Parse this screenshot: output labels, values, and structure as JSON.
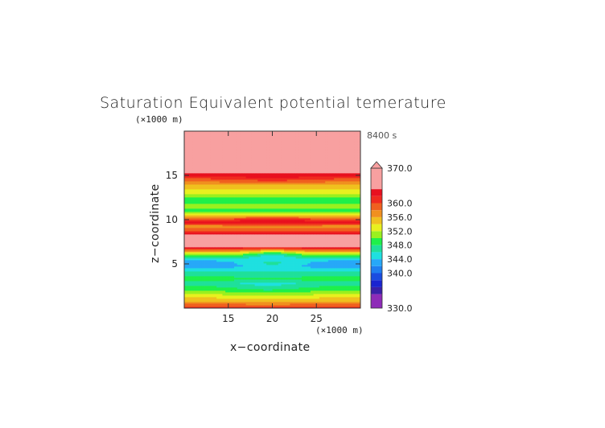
{
  "chart_data": {
    "type": "heatmap",
    "title": "Saturation Equivalent potential temerature",
    "xlabel": "x−coordinate",
    "ylabel": "z−coordinate",
    "x_unit": "(×1000 m)",
    "y_unit": "(×1000 m)",
    "time_label": "8400 s",
    "xlim": [
      10,
      30
    ],
    "ylim": [
      0,
      20
    ],
    "xticks": [
      15,
      20,
      25
    ],
    "yticks": [
      5,
      10,
      15
    ],
    "grid": false,
    "colorbar": {
      "min": 330,
      "max": 370,
      "labels": [
        "370.0",
        "360.0",
        "356.0",
        "352.0",
        "348.0",
        "344.0",
        "340.0",
        "330.0"
      ],
      "label_values": [
        370,
        360,
        356,
        352,
        348,
        344,
        340,
        330
      ],
      "levels": [
        {
          "from": 330,
          "to": 334,
          "color": "#8e2bb8"
        },
        {
          "from": 334,
          "to": 336,
          "color": "#3a20a8"
        },
        {
          "from": 336,
          "to": 338,
          "color": "#1a24d0"
        },
        {
          "from": 338,
          "to": 340,
          "color": "#1a4ce0"
        },
        {
          "from": 340,
          "to": 342,
          "color": "#1f7ef0"
        },
        {
          "from": 342,
          "to": 344,
          "color": "#27a8f8"
        },
        {
          "from": 344,
          "to": 346,
          "color": "#1fe0e0"
        },
        {
          "from": 346,
          "to": 348,
          "color": "#1fe09a"
        },
        {
          "from": 348,
          "to": 350,
          "color": "#1ff04a"
        },
        {
          "from": 350,
          "to": 352,
          "color": "#9af01f"
        },
        {
          "from": 352,
          "to": 354,
          "color": "#e8f01f"
        },
        {
          "from": 354,
          "to": 356,
          "color": "#f0c01f"
        },
        {
          "from": 356,
          "to": 358,
          "color": "#f0901f"
        },
        {
          "from": 358,
          "to": 360,
          "color": "#f0601f"
        },
        {
          "from": 360,
          "to": 362,
          "color": "#f02a1f"
        },
        {
          "from": 362,
          "to": 364,
          "color": "#e8101f"
        },
        {
          "from": 364,
          "to": 370,
          "color": "#f8a0a0"
        }
      ]
    },
    "z_profile": [
      {
        "z": 0.0,
        "v": 361
      },
      {
        "z": 0.3,
        "v": 359
      },
      {
        "z": 0.7,
        "v": 356.5
      },
      {
        "z": 1.1,
        "v": 354.5
      },
      {
        "z": 1.5,
        "v": 352.5
      },
      {
        "z": 1.9,
        "v": 350.5
      },
      {
        "z": 2.3,
        "v": 349
      },
      {
        "z": 2.8,
        "v": 347
      },
      {
        "z": 3.3,
        "v": 349
      },
      {
        "z": 3.8,
        "v": 347.5
      },
      {
        "z": 4.3,
        "v": 345
      },
      {
        "z": 4.8,
        "v": 343
      },
      {
        "z": 5.3,
        "v": 343.5
      },
      {
        "z": 5.7,
        "v": 346
      },
      {
        "z": 6.1,
        "v": 351
      },
      {
        "z": 6.5,
        "v": 357
      },
      {
        "z": 7.0,
        "v": 365
      },
      {
        "z": 7.6,
        "v": 366
      },
      {
        "z": 8.2,
        "v": 366
      },
      {
        "z": 8.8,
        "v": 360
      },
      {
        "z": 9.3,
        "v": 357
      },
      {
        "z": 9.7,
        "v": 363
      },
      {
        "z": 10.2,
        "v": 358
      },
      {
        "z": 10.6,
        "v": 353
      },
      {
        "z": 11.0,
        "v": 349
      },
      {
        "z": 11.6,
        "v": 351
      },
      {
        "z": 12.2,
        "v": 349
      },
      {
        "z": 12.8,
        "v": 351
      },
      {
        "z": 13.4,
        "v": 354
      },
      {
        "z": 14.0,
        "v": 356
      },
      {
        "z": 14.6,
        "v": 359
      },
      {
        "z": 15.0,
        "v": 362
      },
      {
        "z": 15.4,
        "v": 365
      },
      {
        "z": 20.0,
        "v": 367
      }
    ],
    "center_anomalies": [
      {
        "x": 20,
        "z": 5.1,
        "sx": 3.5,
        "sz": 0.6,
        "dv": 3
      },
      {
        "x": 20,
        "z": 6.1,
        "sx": 2.5,
        "sz": 0.5,
        "dv": -5
      },
      {
        "x": 19.5,
        "z": 2.4,
        "sx": 4.5,
        "sz": 1.0,
        "dv": -2
      },
      {
        "x": 20,
        "z": 10.0,
        "sx": 5,
        "sz": 0.4,
        "dv": 2
      },
      {
        "x": 20,
        "z": 14.6,
        "sx": 7,
        "sz": 0.5,
        "dv": 2
      }
    ]
  }
}
